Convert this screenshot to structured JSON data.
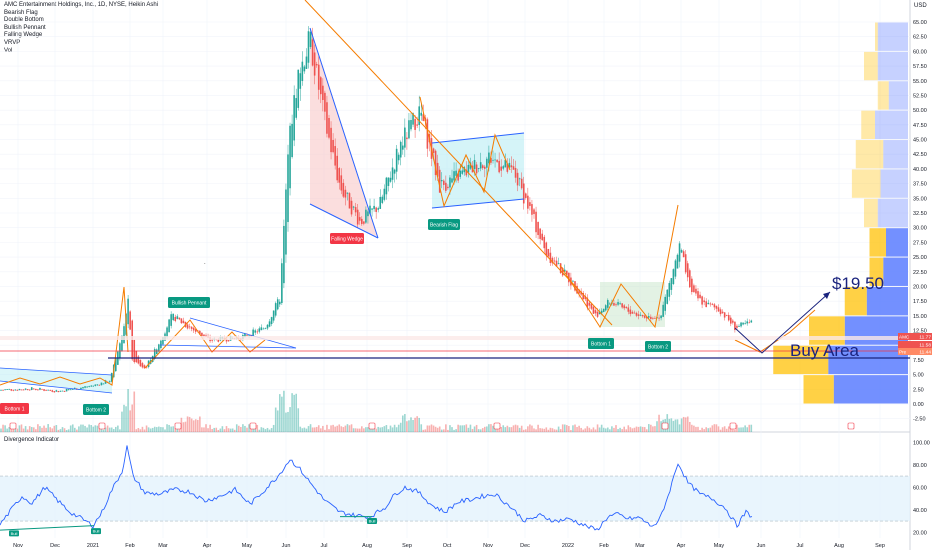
{
  "header": {
    "title": "AMC Entertainment Holdings, Inc., 1D, NYSE, Heikin Ashi",
    "indicators": [
      "Bearish Flag",
      "Double Bottom",
      "Bullish Pennant",
      "Falling Wedge",
      "VRVP",
      "Vol"
    ]
  },
  "currency": "USD",
  "oscillator": {
    "title": "Divergence Indicator"
  },
  "colors": {
    "up": "#26a69a",
    "down": "#ef5350",
    "trend_orange": "#f57c00",
    "wedge_blue": "#2962ff",
    "buy_line": "#1a237e",
    "red_line": "#f23645",
    "vp_blue": "#5b7cff",
    "vp_yellow": "#ffc107",
    "osc_line": "#2962ff",
    "badge_green": "#089981",
    "badge_red": "#f23645"
  },
  "chart_data": [
    {
      "type": "line",
      "title": "AMC Entertainment Holdings, Inc., 1D, NYSE, Heikin Ashi",
      "x_ticks": [
        "Nov",
        "Dec",
        "2021",
        "Feb",
        "Mar",
        "Apr",
        "May",
        "Jun",
        "Jul",
        "Aug",
        "Sep",
        "Oct",
        "Nov",
        "Dec",
        "2022",
        "Feb",
        "Mar",
        "Apr",
        "May",
        "Jun",
        "Jul",
        "Aug",
        "Sep"
      ],
      "y_ticks": [
        -2.5,
        0,
        2.5,
        5,
        7.5,
        10,
        12.5,
        15,
        17.5,
        20,
        22.5,
        25,
        27.5,
        30,
        32.5,
        35,
        37.5,
        40,
        42.5,
        45,
        47.5,
        50,
        52.5,
        55,
        57.5,
        60,
        62.5,
        65
      ],
      "ylim": [
        -2.5,
        67
      ],
      "price_path": [
        [
          0,
          2.4
        ],
        [
          30,
          2.6
        ],
        [
          60,
          2.2
        ],
        [
          95,
          3.2
        ],
        [
          110,
          4.0
        ],
        [
          124,
          13
        ],
        [
          128,
          18
        ],
        [
          132,
          7.5
        ],
        [
          145,
          6.0
        ],
        [
          158,
          10
        ],
        [
          172,
          15
        ],
        [
          190,
          13
        ],
        [
          210,
          10.8
        ],
        [
          240,
          11.3
        ],
        [
          265,
          13
        ],
        [
          280,
          18
        ],
        [
          289,
          45
        ],
        [
          298,
          56
        ],
        [
          310,
          62
        ],
        [
          325,
          48
        ],
        [
          340,
          37
        ],
        [
          360,
          31
        ],
        [
          380,
          34
        ],
        [
          400,
          44
        ],
        [
          420,
          50
        ],
        [
          440,
          37
        ],
        [
          470,
          40
        ],
        [
          490,
          42
        ],
        [
          515,
          39
        ],
        [
          530,
          33
        ],
        [
          545,
          26
        ],
        [
          565,
          22
        ],
        [
          580,
          19
        ],
        [
          595,
          15
        ],
        [
          610,
          17.5
        ],
        [
          625,
          16
        ],
        [
          645,
          14.8
        ],
        [
          660,
          15
        ],
        [
          672,
          22
        ],
        [
          680,
          27
        ],
        [
          690,
          19
        ],
        [
          705,
          17
        ],
        [
          720,
          16
        ],
        [
          735,
          13
        ],
        [
          750,
          13.8
        ]
      ],
      "price_labels": [
        {
          "text": "AMC",
          "value": "11.77"
        },
        {
          "value": "11.58"
        },
        {
          "text": "Pre",
          "value": "11.44"
        }
      ],
      "annotations": [
        {
          "text": "$19.50",
          "kind": "target"
        },
        {
          "text": "Buy Area",
          "kind": "zone"
        },
        {
          "text": "Bottom 1",
          "kind": "pattern",
          "color": "red"
        },
        {
          "text": "Bottom 2",
          "kind": "pattern",
          "color": "green"
        },
        {
          "text": "Bullish Pennant",
          "kind": "pattern",
          "color": "green"
        },
        {
          "text": "Falling Wedge",
          "kind": "pattern",
          "color": "red"
        },
        {
          "text": "Bearish Flag",
          "kind": "pattern",
          "color": "green"
        },
        {
          "text": "Bottom 1",
          "kind": "pattern",
          "color": "green"
        },
        {
          "text": "Bottom 2",
          "kind": "pattern",
          "color": "green"
        }
      ],
      "volume_profile": [
        {
          "price": 62.5,
          "buy": 55,
          "sell": 5
        },
        {
          "price": 57.5,
          "buy": 55,
          "sell": 25
        },
        {
          "price": 52.5,
          "buy": 35,
          "sell": 20
        },
        {
          "price": 47.5,
          "buy": 60,
          "sell": 25
        },
        {
          "price": 42.5,
          "buy": 45,
          "sell": 50
        },
        {
          "price": 37.5,
          "buy": 50,
          "sell": 52
        },
        {
          "price": 32.5,
          "buy": 55,
          "sell": 25
        },
        {
          "price": 27.5,
          "buy": 40,
          "sell": 30
        },
        {
          "price": 22.5,
          "buy": 45,
          "sell": 25
        },
        {
          "price": 17.5,
          "buy": 75,
          "sell": 40
        },
        {
          "price": 12.5,
          "buy": 115,
          "sell": 65
        },
        {
          "price": 7.5,
          "buy": 145,
          "sell": 100
        },
        {
          "price": 2.5,
          "buy": 135,
          "sell": 55
        }
      ]
    },
    {
      "type": "line",
      "title": "Divergence Indicator",
      "y_ticks": [
        20,
        40,
        60,
        80,
        100
      ],
      "ylim": [
        15,
        102
      ],
      "band": [
        30,
        70
      ],
      "levels": [
        30,
        70
      ],
      "divergence_labels": [
        "Bull",
        "Bull",
        "Bull"
      ],
      "series": [
        {
          "values": [
            [
              0,
              27
            ],
            [
              12,
              41
            ],
            [
              22,
              52
            ],
            [
              32,
              46
            ],
            [
              45,
              60
            ],
            [
              58,
              48
            ],
            [
              70,
              38
            ],
            [
              82,
              32
            ],
            [
              93,
              26
            ],
            [
              102,
              38
            ],
            [
              112,
              58
            ],
            [
              122,
              74
            ],
            [
              127,
              96
            ],
            [
              133,
              70
            ],
            [
              145,
              55
            ],
            [
              160,
              54
            ],
            [
              175,
              58
            ],
            [
              190,
              56
            ],
            [
              205,
              48
            ],
            [
              220,
              52
            ],
            [
              235,
              58
            ],
            [
              250,
              45
            ],
            [
              265,
              58
            ],
            [
              278,
              70
            ],
            [
              290,
              85
            ],
            [
              300,
              76
            ],
            [
              312,
              62
            ],
            [
              325,
              48
            ],
            [
              340,
              38
            ],
            [
              355,
              35
            ],
            [
              370,
              34
            ],
            [
              385,
              42
            ],
            [
              395,
              54
            ],
            [
              405,
              60
            ],
            [
              418,
              56
            ],
            [
              432,
              44
            ],
            [
              445,
              38
            ],
            [
              458,
              47
            ],
            [
              470,
              49
            ],
            [
              482,
              52
            ],
            [
              495,
              54
            ],
            [
              510,
              43
            ],
            [
              525,
              30
            ],
            [
              540,
              35
            ],
            [
              555,
              30
            ],
            [
              570,
              32
            ],
            [
              585,
              26
            ],
            [
              597,
              22
            ],
            [
              608,
              34
            ],
            [
              618,
              36
            ],
            [
              628,
              32
            ],
            [
              640,
              33
            ],
            [
              650,
              26
            ],
            [
              658,
              28
            ],
            [
              668,
              52
            ],
            [
              678,
              82
            ],
            [
              688,
              64
            ],
            [
              700,
              54
            ],
            [
              712,
              50
            ],
            [
              725,
              42
            ],
            [
              737,
              26
            ],
            [
              746,
              38
            ],
            [
              752,
              34
            ]
          ]
        }
      ]
    }
  ]
}
